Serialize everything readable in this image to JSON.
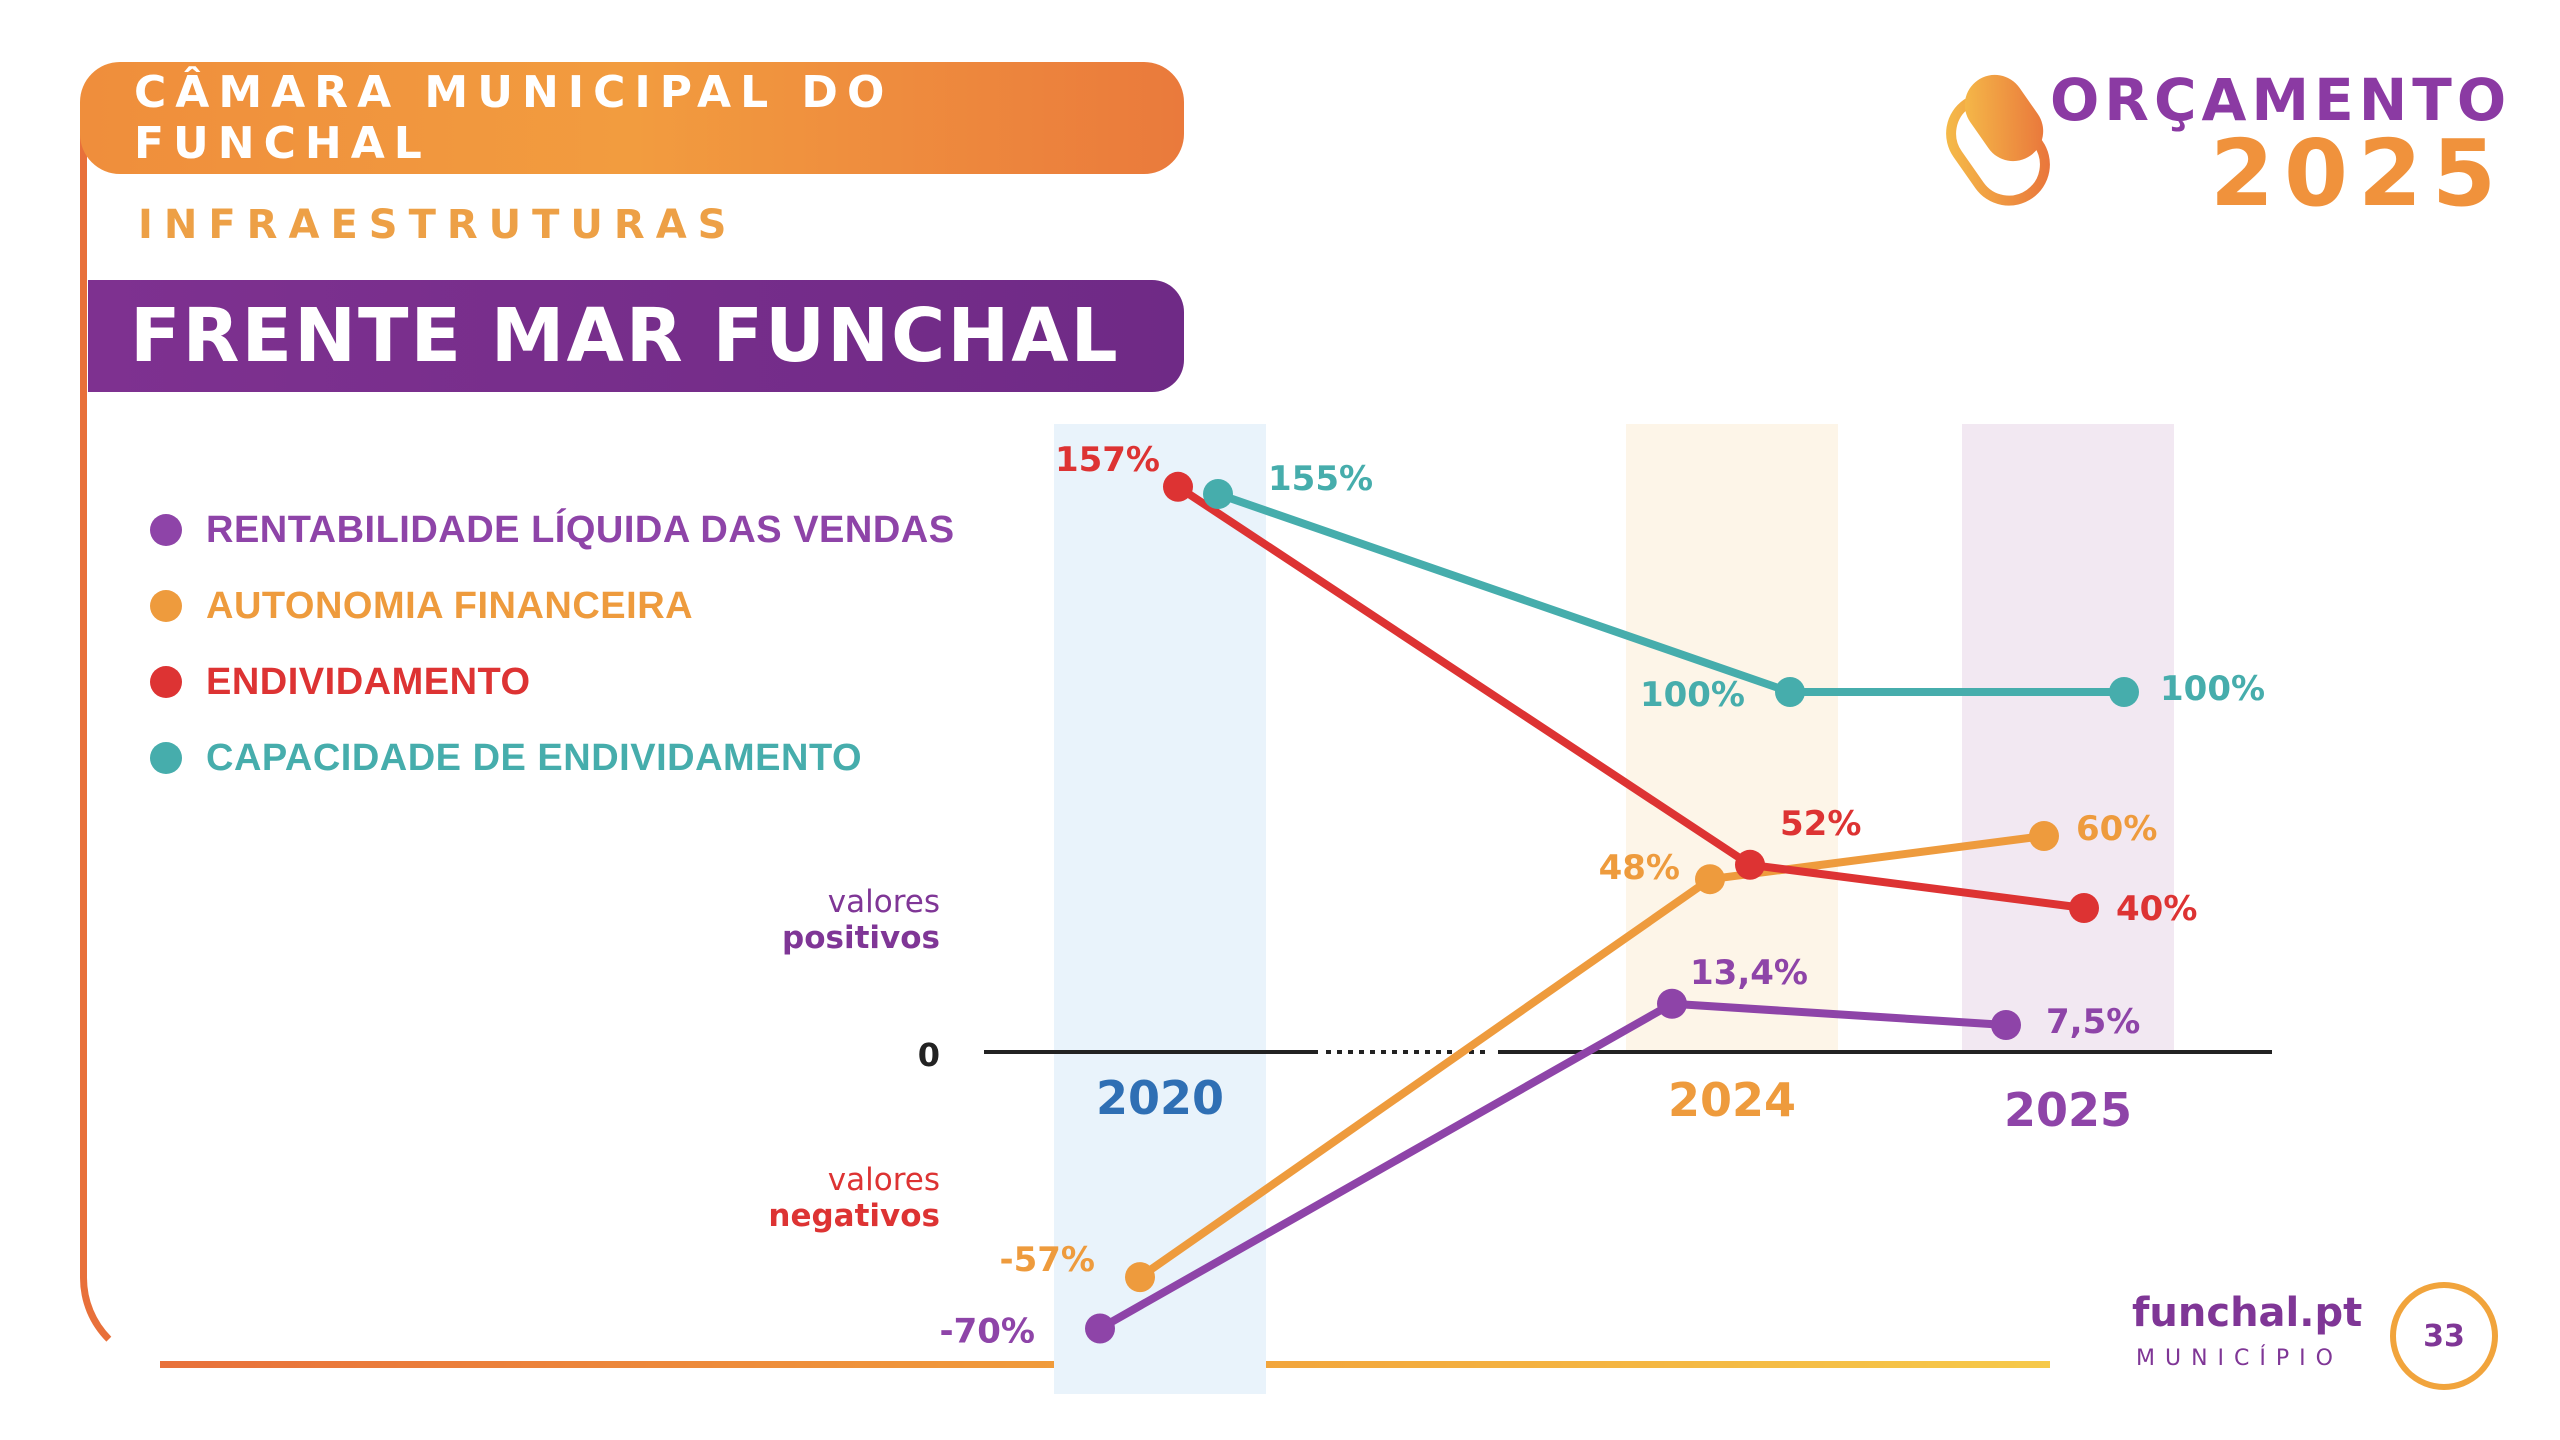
{
  "header": {
    "org": "CÂMARA MUNICIPAL DO FUNCHAL",
    "section": "INFRAESTRUTURAS",
    "title": "FRENTE MAR FUNCHAL"
  },
  "brand": {
    "title": "ORÇAMENTO",
    "year": "2025"
  },
  "legend": [
    {
      "label": "RENTABILIDADE LÍQUIDA DAS VENDAS",
      "color": "#8e44a8"
    },
    {
      "label": "AUTONOMIA FINANCEIRA",
      "color": "#ee9b3d"
    },
    {
      "label": "ENDIVIDAMENTO",
      "color": "#dd3333"
    },
    {
      "label": "CAPACIDADE DE ENDIVIDAMENTO",
      "color": "#46adac"
    }
  ],
  "side_labels": {
    "positive_l1": "valores",
    "positive_l2": "positivos",
    "negative_l1": "valores",
    "negative_l2": "negativos"
  },
  "zero_label": "0",
  "chart_data": {
    "type": "line",
    "categories": [
      "2020",
      "2024",
      "2025"
    ],
    "category_colors": [
      "#2f6fb4",
      "#ee9b3d",
      "#8e44a8"
    ],
    "band_colors": [
      "#e9f3fb",
      "#fdf5e8",
      "#f2e8f2"
    ],
    "series": [
      {
        "name": "RENTABILIDADE LÍQUIDA DAS VENDAS",
        "color": "#8e44a8",
        "values": [
          -70,
          13.4,
          7.5
        ],
        "labels": [
          "-70%",
          "13,4%",
          "7,5%"
        ]
      },
      {
        "name": "AUTONOMIA FINANCEIRA",
        "color": "#ee9b3d",
        "values": [
          -57,
          48,
          60
        ],
        "labels": [
          "-57%",
          "48%",
          "60%"
        ]
      },
      {
        "name": "ENDIVIDAMENTO",
        "color": "#dd3333",
        "values": [
          157,
          52,
          40
        ],
        "labels": [
          "157%",
          "52%",
          "40%"
        ]
      },
      {
        "name": "CAPACIDADE DE ENDIVIDAMENTO",
        "color": "#46adac",
        "values": [
          155,
          100,
          100
        ],
        "labels": [
          "155%",
          "100%",
          "100%"
        ]
      }
    ],
    "axis_break_between": [
      "2020",
      "2024"
    ],
    "grid": false
  },
  "footer": {
    "brand": "funchal.pt",
    "sub": "MUNICÍPIO",
    "page": "33"
  }
}
